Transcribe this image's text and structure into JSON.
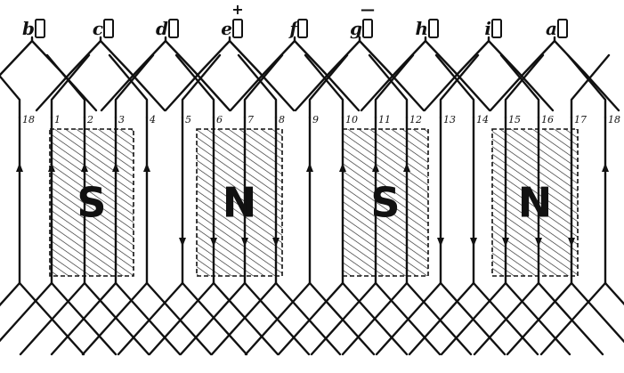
{
  "segments": [
    {
      "letter": "b",
      "sign": ""
    },
    {
      "letter": "c",
      "sign": ""
    },
    {
      "letter": "d",
      "sign": ""
    },
    {
      "letter": "e",
      "sign": "+"
    },
    {
      "letter": "f",
      "sign": ""
    },
    {
      "letter": "g",
      "sign": "—"
    },
    {
      "letter": "h",
      "sign": ""
    },
    {
      "letter": "i",
      "sign": ""
    },
    {
      "letter": "a",
      "sign": ""
    }
  ],
  "conductors": [
    "18",
    "1",
    "2",
    "3",
    "4",
    "5",
    "6",
    "7",
    "8",
    "9",
    "10",
    "11",
    "12",
    "13",
    "14",
    "15",
    "16",
    "17",
    "18"
  ],
  "poles": [
    "S",
    "N",
    "S",
    "N"
  ],
  "conductor_directions": [
    "up",
    "up",
    "up",
    "up",
    "up",
    "down",
    "down",
    "down",
    "down",
    "up",
    "up",
    "up",
    "up",
    "down",
    "down",
    "down",
    "down",
    "down",
    "up"
  ]
}
